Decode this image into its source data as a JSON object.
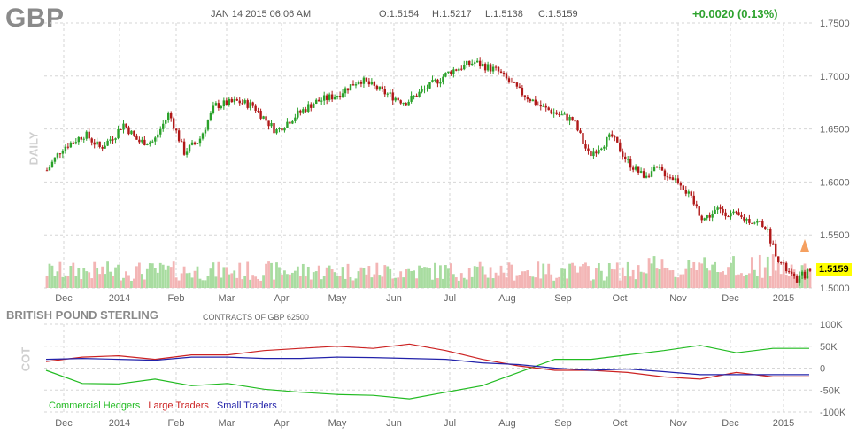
{
  "header": {
    "ticker": "GBP",
    "datetime": "JAN 14 2015 06:06 AM",
    "open": "O:1.5154",
    "high": "H:1.5217",
    "low": "L:1.5138",
    "close": "C:1.5159",
    "change": "+0.0020 (0.13%)"
  },
  "labels": {
    "daily": "DAILY",
    "cot": "COT",
    "cot_title": "BRITISH POUND STERLING",
    "cot_subtitle": "CONTRACTS OF GBP 62500",
    "last_price": "1.5159"
  },
  "colors": {
    "up": "#2aa12a",
    "down": "#b01818",
    "vol_up": "#a8dca0",
    "vol_down": "#f3b5b5",
    "commercial": "#22bb22",
    "large": "#cc2222",
    "small": "#2222aa",
    "grid": "#d6d6d6"
  },
  "chart_data": [
    {
      "type": "candlestick",
      "title": "GBP",
      "ylim": [
        1.5,
        1.75
      ],
      "y_ticks": [
        "1.7500",
        "1.7000",
        "1.6500",
        "1.6000",
        "1.5500",
        "1.5000"
      ],
      "x_ticks": [
        "Dec",
        "2014",
        "Feb",
        "Mar",
        "Apr",
        "May",
        "Jun",
        "Jul",
        "Aug",
        "Sep",
        "Oct",
        "Nov",
        "Dec",
        "2015"
      ],
      "last": 1.5159,
      "anchors": [
        {
          "t": 0.0,
          "v": 1.611
        },
        {
          "t": 0.02,
          "v": 1.632
        },
        {
          "t": 0.05,
          "v": 1.645
        },
        {
          "t": 0.07,
          "v": 1.632
        },
        {
          "t": 0.09,
          "v": 1.645
        },
        {
          "t": 0.1,
          "v": 1.655
        },
        {
          "t": 0.12,
          "v": 1.638
        },
        {
          "t": 0.14,
          "v": 1.638
        },
        {
          "t": 0.16,
          "v": 1.665
        },
        {
          "t": 0.18,
          "v": 1.628
        },
        {
          "t": 0.2,
          "v": 1.64
        },
        {
          "t": 0.22,
          "v": 1.672
        },
        {
          "t": 0.25,
          "v": 1.676
        },
        {
          "t": 0.27,
          "v": 1.672
        },
        {
          "t": 0.3,
          "v": 1.648
        },
        {
          "t": 0.33,
          "v": 1.665
        },
        {
          "t": 0.35,
          "v": 1.675
        },
        {
          "t": 0.38,
          "v": 1.682
        },
        {
          "t": 0.41,
          "v": 1.697
        },
        {
          "t": 0.44,
          "v": 1.685
        },
        {
          "t": 0.47,
          "v": 1.675
        },
        {
          "t": 0.5,
          "v": 1.69
        },
        {
          "t": 0.53,
          "v": 1.705
        },
        {
          "t": 0.56,
          "v": 1.713
        },
        {
          "t": 0.59,
          "v": 1.705
        },
        {
          "t": 0.62,
          "v": 1.685
        },
        {
          "t": 0.65,
          "v": 1.67
        },
        {
          "t": 0.69,
          "v": 1.658
        },
        {
          "t": 0.71,
          "v": 1.625
        },
        {
          "t": 0.74,
          "v": 1.643
        },
        {
          "t": 0.76,
          "v": 1.62
        },
        {
          "t": 0.78,
          "v": 1.606
        },
        {
          "t": 0.8,
          "v": 1.612
        },
        {
          "t": 0.83,
          "v": 1.6
        },
        {
          "t": 0.86,
          "v": 1.565
        },
        {
          "t": 0.88,
          "v": 1.574
        },
        {
          "t": 0.91,
          "v": 1.566
        },
        {
          "t": 0.94,
          "v": 1.56
        },
        {
          "t": 0.96,
          "v": 1.525
        },
        {
          "t": 0.98,
          "v": 1.507
        },
        {
          "t": 1.0,
          "v": 1.516
        }
      ]
    },
    {
      "type": "line",
      "title": "BRITISH POUND STERLING",
      "ylim": [
        -100000,
        100000
      ],
      "y_ticks": [
        "100K",
        "50K",
        "0",
        "-50K",
        "-100K"
      ],
      "x_ticks": [
        "Dec",
        "2014",
        "Feb",
        "Mar",
        "Apr",
        "May",
        "Jun",
        "Jul",
        "Aug",
        "Sep",
        "Oct",
        "Nov",
        "Dec",
        "2015"
      ],
      "series": [
        {
          "name": "Commercial Hedgers",
          "values": [
            -5000,
            -35000,
            -36000,
            -25000,
            -40000,
            -35000,
            -48000,
            -55000,
            -60000,
            -62000,
            -70000,
            -55000,
            -40000,
            -10000,
            20000,
            20000,
            30000,
            40000,
            52000,
            35000,
            45000,
            45000
          ]
        },
        {
          "name": "Large Traders",
          "values": [
            15000,
            25000,
            28000,
            20000,
            30000,
            30000,
            40000,
            45000,
            50000,
            45000,
            55000,
            40000,
            20000,
            5000,
            -5000,
            -5000,
            -10000,
            -20000,
            -25000,
            -10000,
            -20000,
            -20000
          ]
        },
        {
          "name": "Small Traders",
          "values": [
            20000,
            22000,
            20000,
            18000,
            25000,
            25000,
            22000,
            22000,
            25000,
            24000,
            22000,
            20000,
            12000,
            8000,
            0,
            -5000,
            -2000,
            -8000,
            -15000,
            -15000,
            -15000,
            -15000
          ]
        }
      ]
    }
  ]
}
